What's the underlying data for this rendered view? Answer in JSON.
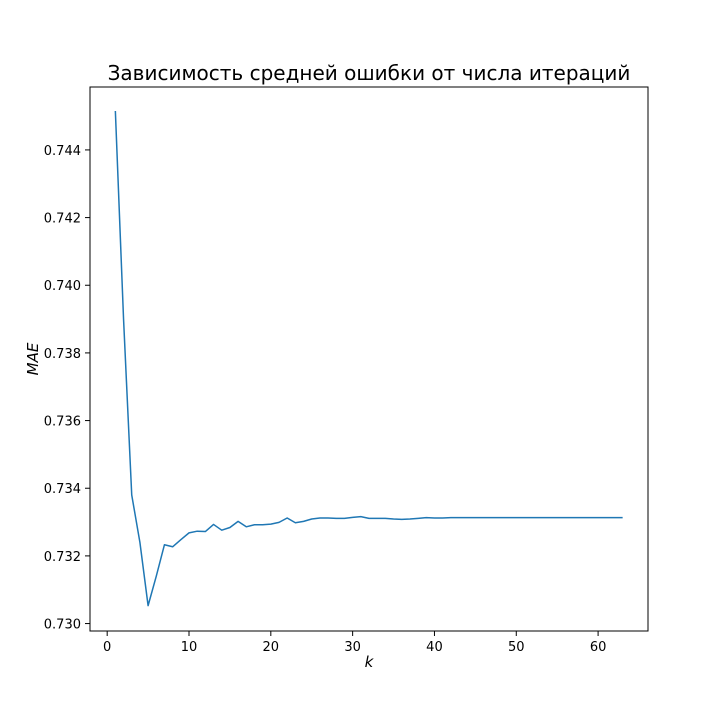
{
  "chart_data": {
    "type": "line",
    "title": "Зависимость средней ошибки от числа итераций",
    "xlabel": "k",
    "ylabel": "MAE",
    "xlim": [
      -2.1,
      66.1
    ],
    "ylim": [
      0.72978,
      0.74586
    ],
    "xticks": [
      0,
      10,
      20,
      30,
      40,
      50,
      60
    ],
    "yticks": [
      0.73,
      0.732,
      0.734,
      0.736,
      0.738,
      0.74,
      0.742,
      0.744
    ],
    "ytick_labels": [
      "0.730",
      "0.732",
      "0.734",
      "0.736",
      "0.738",
      "0.740",
      "0.742",
      "0.744"
    ],
    "grid": false,
    "line_color": "#1f77b4",
    "series": [
      {
        "x": [
          1,
          2,
          3,
          4,
          5,
          6,
          7,
          8,
          9,
          10,
          11,
          12,
          13,
          14,
          15,
          16,
          17,
          18,
          19,
          20,
          21,
          22,
          23,
          24,
          25,
          26,
          27,
          28,
          29,
          30,
          31,
          32,
          33,
          34,
          35,
          36,
          37,
          38,
          39,
          40,
          41,
          42,
          43,
          44,
          45,
          46,
          47,
          48,
          49,
          50,
          51,
          52,
          53,
          54,
          55,
          56,
          57,
          58,
          59,
          60,
          61,
          62,
          63
        ],
        "y": [
          0.74515,
          0.739,
          0.7338,
          0.7324,
          0.73053,
          0.7314,
          0.73233,
          0.73227,
          0.73248,
          0.73268,
          0.73273,
          0.73272,
          0.73293,
          0.73276,
          0.73284,
          0.73302,
          0.73286,
          0.73292,
          0.73292,
          0.73294,
          0.73299,
          0.73312,
          0.73298,
          0.73302,
          0.73309,
          0.73312,
          0.73312,
          0.73311,
          0.73311,
          0.73314,
          0.73316,
          0.73311,
          0.73311,
          0.73311,
          0.73309,
          0.73308,
          0.73309,
          0.73311,
          0.73313,
          0.73312,
          0.73312,
          0.73313,
          0.73313,
          0.73313,
          0.73313,
          0.73313,
          0.73313,
          0.73313,
          0.73313,
          0.73313,
          0.73313,
          0.73313,
          0.73313,
          0.73313,
          0.73313,
          0.73313,
          0.73313,
          0.73313,
          0.73313,
          0.73313,
          0.73313,
          0.73313,
          0.73313
        ]
      }
    ]
  }
}
